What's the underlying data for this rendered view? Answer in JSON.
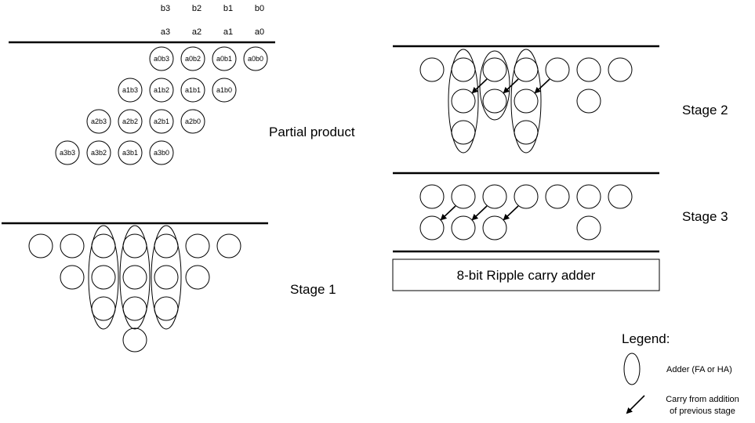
{
  "header": {
    "b_bits": [
      "b3",
      "b2",
      "b1",
      "b0"
    ],
    "a_bits": [
      "a3",
      "a2",
      "a1",
      "a0"
    ]
  },
  "partial_products": {
    "row0": [
      "a0b3",
      "a0b2",
      "a0b1",
      "a0b0"
    ],
    "row1": [
      "a1b3",
      "a1b2",
      "a1b1",
      "a1b0"
    ],
    "row2": [
      "a2b3",
      "a2b2",
      "a2b1",
      "a2b0"
    ],
    "row3": [
      "a3b3",
      "a3b2",
      "a3b1",
      "a3b0"
    ],
    "label": "Partial product"
  },
  "stages": {
    "stage1": "Stage 1",
    "stage2": "Stage 2",
    "stage3": "Stage 3"
  },
  "final_adder": "8-bit Ripple carry adder",
  "legend": {
    "title": "Legend:",
    "adder": "Adder (FA or HA)",
    "carry_line1": "Carry from addition",
    "carry_line2": "of previous stage"
  }
}
